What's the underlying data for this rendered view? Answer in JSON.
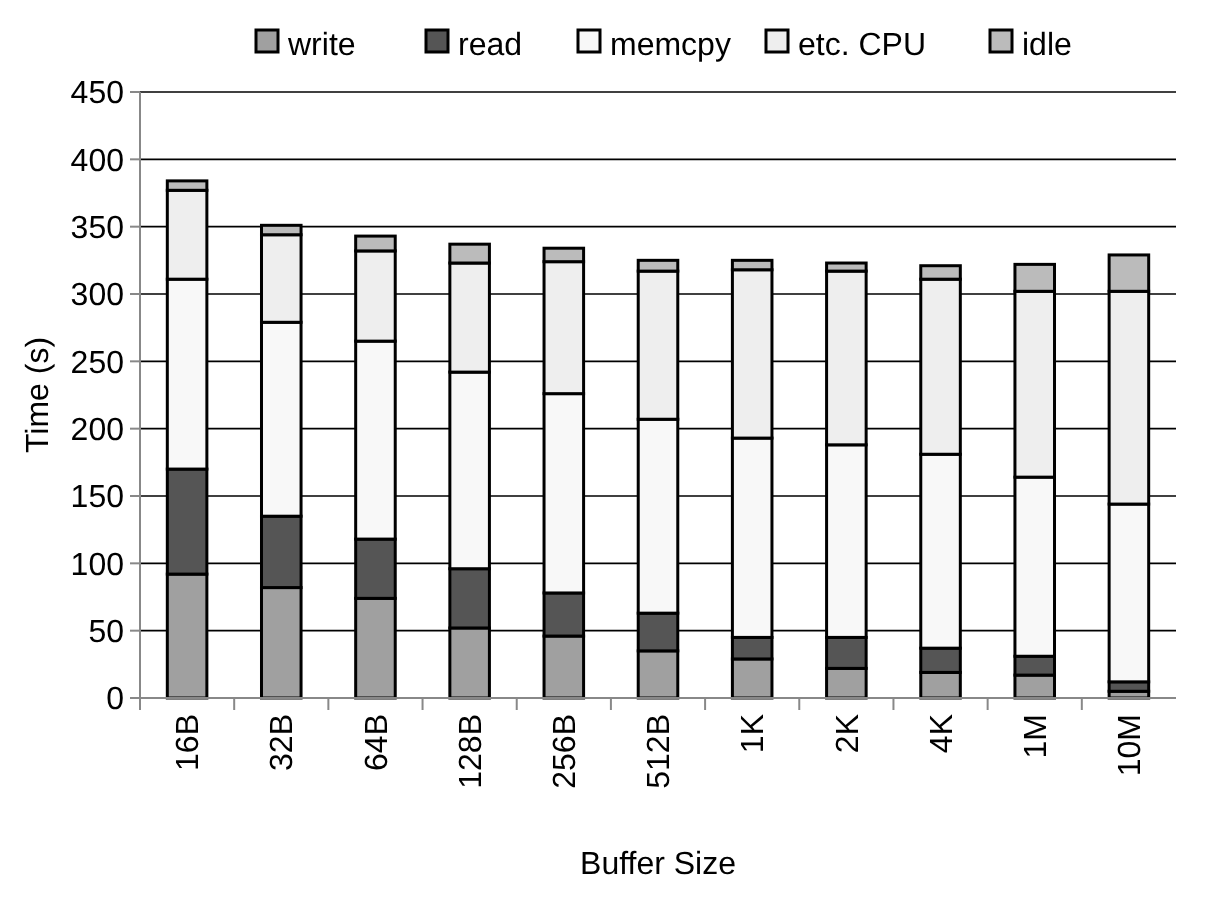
{
  "chart_data": {
    "type": "bar",
    "stacked": true,
    "xlabel": "Buffer Size",
    "ylabel": "Time (s)",
    "categories": [
      "16B",
      "32B",
      "64B",
      "128B",
      "256B",
      "512B",
      "1K",
      "2K",
      "4K",
      "1M",
      "10M"
    ],
    "series": [
      {
        "name": "write",
        "color": "#a0a0a0",
        "values": [
          92,
          82,
          74,
          52,
          46,
          35,
          29,
          22,
          19,
          17,
          5
        ]
      },
      {
        "name": "read",
        "color": "#555555",
        "values": [
          78,
          53,
          44,
          44,
          32,
          28,
          16,
          23,
          18,
          14,
          7
        ]
      },
      {
        "name": "memcpy",
        "color": "#f8f8f8",
        "values": [
          141,
          144,
          147,
          146,
          148,
          144,
          148,
          143,
          144,
          133,
          132
        ]
      },
      {
        "name": "etc. CPU",
        "color": "#eeeeee",
        "values": [
          66,
          65,
          67,
          81,
          98,
          110,
          125,
          129,
          130,
          138,
          158
        ]
      },
      {
        "name": "idle",
        "color": "#bbbbbb",
        "values": [
          7,
          7,
          11,
          14,
          10,
          8,
          7,
          6,
          10,
          20,
          27
        ]
      }
    ],
    "ylim": [
      0,
      450
    ],
    "yticks": [
      0,
      50,
      100,
      150,
      200,
      250,
      300,
      350,
      400,
      450
    ],
    "grid": "y",
    "legend": "top"
  }
}
